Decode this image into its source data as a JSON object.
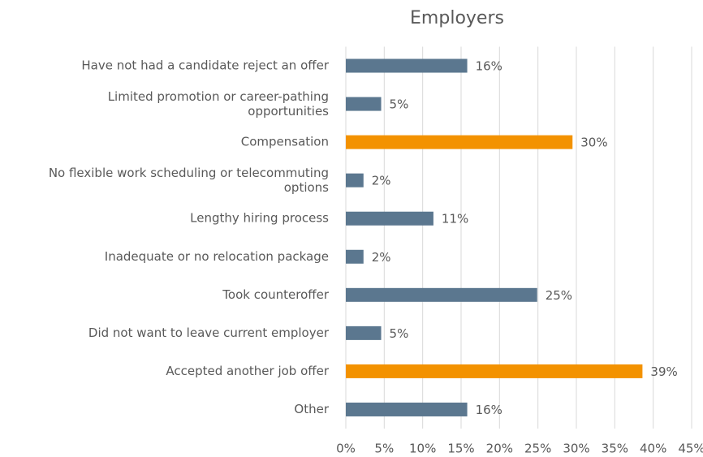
{
  "chart_data": {
    "type": "hbar",
    "title": "Employers",
    "categories": [
      "Have not had a candidate reject an offer",
      "Limited promotion or career-pathing opportunities",
      "Compensation",
      "No flexible work scheduling or telecommuting options",
      "Lengthy hiring process",
      "Inadequate or no relocation package",
      "Took counteroffer",
      "Did not want to leave current employer",
      "Accepted another job offer",
      "Other"
    ],
    "values": [
      15.8,
      4.6,
      29.5,
      2.3,
      11.4,
      2.3,
      24.9,
      4.6,
      38.6,
      15.8
    ],
    "value_labels": [
      "16%",
      "5%",
      "30%",
      "2%",
      "11%",
      "2%",
      "25%",
      "5%",
      "39%",
      "16%"
    ],
    "colors": [
      "#5b778f",
      "#5b778f",
      "#f39200",
      "#5b778f",
      "#5b778f",
      "#5b778f",
      "#5b778f",
      "#5b778f",
      "#f39200",
      "#5b778f"
    ],
    "xlim": [
      0,
      45
    ],
    "xticks": [
      {
        "value": 0,
        "label": "0%"
      },
      {
        "value": 5,
        "label": "5%"
      },
      {
        "value": 10,
        "label": "10%"
      },
      {
        "value": 15,
        "label": "15%"
      },
      {
        "value": 20,
        "label": "20%"
      },
      {
        "value": 25,
        "label": "25%"
      },
      {
        "value": 30,
        "label": "30%"
      },
      {
        "value": 35,
        "label": "35%"
      },
      {
        "value": 40,
        "label": "40%"
      },
      {
        "value": 45,
        "label": "45%"
      }
    ],
    "grid": true
  }
}
